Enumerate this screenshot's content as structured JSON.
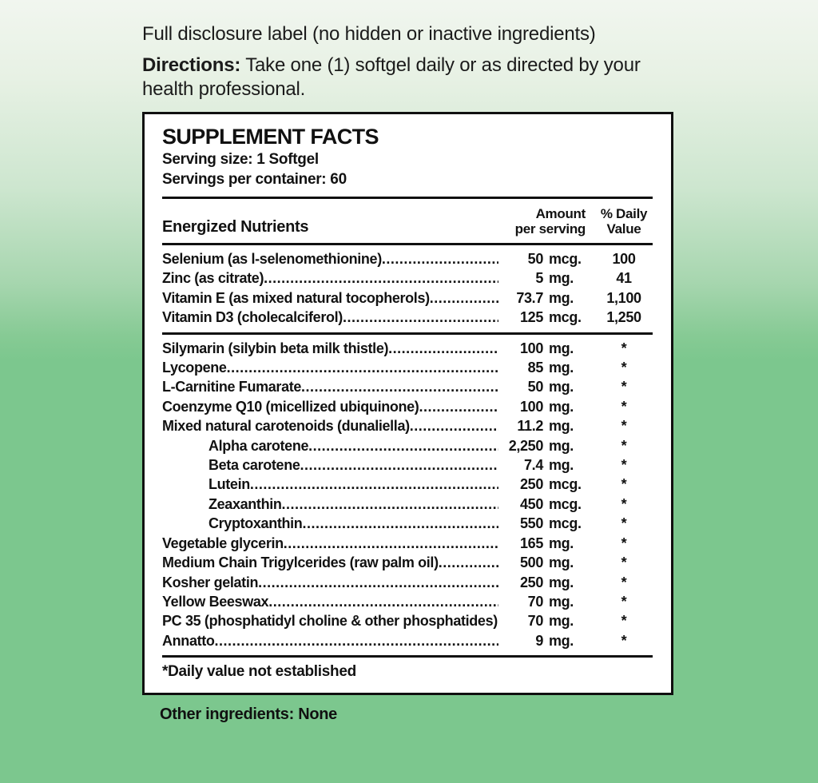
{
  "colors": {
    "background_top": "#f1f6ef",
    "background_bottom": "#7cc78e",
    "panel_background": "#ffffff",
    "panel_border": "#101010",
    "text": "#1b1b1b"
  },
  "top": {
    "line1": "Full disclosure label (no hidden or inactive ingredients)",
    "directions_label": "Directions:",
    "directions_text": " Take one (1) softgel daily or as directed by your health professional."
  },
  "panel": {
    "title": "SUPPLEMENT FACTS",
    "serving_size": "Serving size: 1 Softgel",
    "servings_per_container": "Servings per container: 60"
  },
  "table": {
    "header": {
      "nutrients": "Energized Nutrients",
      "amount_line1": "Amount",
      "amount_line2": "per serving",
      "dv_line1": "% Daily",
      "dv_line2": "Value"
    },
    "groups": [
      {
        "rows": [
          {
            "name": "Selenium (as l-selenomethionine)",
            "amount": "50",
            "unit": "mcg.",
            "dv": "100",
            "indent": false
          },
          {
            "name": "Zinc (as citrate)",
            "amount": "5",
            "unit": "mg.",
            "dv": "41",
            "indent": false
          },
          {
            "name": "Vitamin E (as mixed natural tocopherols)",
            "amount": "73.7",
            "unit": "mg.",
            "dv": "1,100",
            "indent": false
          },
          {
            "name": "Vitamin D3 (cholecalciferol)",
            "amount": "125",
            "unit": "mcg.",
            "dv": "1,250",
            "indent": false
          }
        ]
      },
      {
        "rows": [
          {
            "name": "Silymarin (silybin beta milk thistle)",
            "amount": "100",
            "unit": "mg.",
            "dv": "*",
            "indent": false
          },
          {
            "name": "Lycopene",
            "amount": "85",
            "unit": "mg.",
            "dv": "*",
            "indent": false
          },
          {
            "name": "L-Carnitine Fumarate",
            "amount": "50",
            "unit": "mg.",
            "dv": "*",
            "indent": false
          },
          {
            "name": "Coenzyme Q10 (micellized ubiquinone)",
            "amount": "100",
            "unit": "mg.",
            "dv": "*",
            "indent": false
          },
          {
            "name": "Mixed natural carotenoids (dunaliella)",
            "amount": "11.2",
            "unit": "mg.",
            "dv": "*",
            "indent": false
          },
          {
            "name": "Alpha carotene",
            "amount": "2,250",
            "unit": "mg.",
            "dv": "*",
            "indent": true
          },
          {
            "name": "Beta carotene",
            "amount": "7.4",
            "unit": "mg.",
            "dv": "*",
            "indent": true
          },
          {
            "name": "Lutein",
            "amount": "250",
            "unit": "mcg.",
            "dv": "*",
            "indent": true
          },
          {
            "name": "Zeaxanthin",
            "amount": "450",
            "unit": "mcg.",
            "dv": "*",
            "indent": true
          },
          {
            "name": "Cryptoxanthin",
            "amount": "550",
            "unit": "mcg.",
            "dv": "*",
            "indent": true
          },
          {
            "name": "Vegetable glycerin",
            "amount": "165",
            "unit": "mg.",
            "dv": "*",
            "indent": false
          },
          {
            "name": "Medium Chain Trigylcerides (raw palm oil)",
            "amount": "500",
            "unit": "mg.",
            "dv": "*",
            "indent": false
          },
          {
            "name": "Kosher gelatin",
            "amount": "250",
            "unit": "mg.",
            "dv": "*",
            "indent": false
          },
          {
            "name": "Yellow Beeswax",
            "amount": "70",
            "unit": "mg.",
            "dv": "*",
            "indent": false
          },
          {
            "name": "PC 35 (phosphatidyl choline & other phosphatides)",
            "amount": "70",
            "unit": "mg.",
            "dv": "*",
            "indent": false
          },
          {
            "name": "Annatto",
            "amount": "9",
            "unit": "mg.",
            "dv": "*",
            "indent": false
          }
        ]
      }
    ],
    "footnote": "*Daily value not established"
  },
  "footer": {
    "other_ingredients": "Other ingredients: None"
  }
}
